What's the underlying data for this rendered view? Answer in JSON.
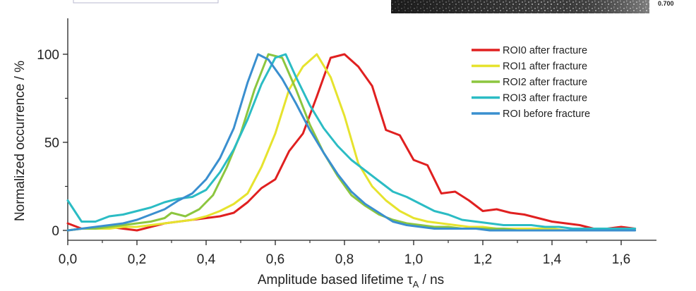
{
  "inset": {
    "corner_value": "0.700"
  },
  "chart_data": {
    "type": "line",
    "title": "",
    "xlabel": "Amplitude based lifetime τ",
    "xlabel_sub": "A",
    "xlabel_unit": " / ns",
    "ylabel": "Normalized occurrence / %",
    "xlim": [
      0.0,
      1.7
    ],
    "ylim": [
      -5,
      122
    ],
    "x_ticks": [
      0.0,
      0.2,
      0.4,
      0.6,
      0.8,
      1.0,
      1.2,
      1.4,
      1.6
    ],
    "x_tick_labels": [
      "0,0",
      "0,2",
      "0,4",
      "0,6",
      "0,8",
      "1,0",
      "1,2",
      "1,4",
      "1,6"
    ],
    "y_ticks": [
      0,
      50,
      100
    ],
    "y_tick_labels": [
      "0",
      "50",
      "100"
    ],
    "grid": false,
    "legend_position": "top-right",
    "series": [
      {
        "name": "ROI0 after fracture",
        "color": "#e02020",
        "points": [
          [
            0.0,
            4
          ],
          [
            0.04,
            1
          ],
          [
            0.08,
            1
          ],
          [
            0.12,
            2
          ],
          [
            0.16,
            1
          ],
          [
            0.2,
            0
          ],
          [
            0.24,
            2
          ],
          [
            0.28,
            4
          ],
          [
            0.32,
            5
          ],
          [
            0.36,
            6
          ],
          [
            0.4,
            7
          ],
          [
            0.44,
            8
          ],
          [
            0.48,
            10
          ],
          [
            0.52,
            16
          ],
          [
            0.56,
            24
          ],
          [
            0.6,
            29
          ],
          [
            0.64,
            45
          ],
          [
            0.68,
            55
          ],
          [
            0.72,
            76
          ],
          [
            0.76,
            98
          ],
          [
            0.8,
            100
          ],
          [
            0.84,
            93
          ],
          [
            0.88,
            82
          ],
          [
            0.92,
            57
          ],
          [
            0.96,
            54
          ],
          [
            1.0,
            40
          ],
          [
            1.04,
            37
          ],
          [
            1.08,
            21
          ],
          [
            1.12,
            22
          ],
          [
            1.16,
            17
          ],
          [
            1.2,
            11
          ],
          [
            1.24,
            12
          ],
          [
            1.28,
            10
          ],
          [
            1.32,
            9
          ],
          [
            1.36,
            7
          ],
          [
            1.4,
            5
          ],
          [
            1.44,
            4
          ],
          [
            1.48,
            3
          ],
          [
            1.52,
            1
          ],
          [
            1.56,
            1
          ],
          [
            1.6,
            2
          ],
          [
            1.64,
            1
          ]
        ]
      },
      {
        "name": "ROI1 after fracture",
        "color": "#e6e32e",
        "points": [
          [
            0.0,
            0
          ],
          [
            0.04,
            1
          ],
          [
            0.08,
            1
          ],
          [
            0.12,
            1
          ],
          [
            0.16,
            2
          ],
          [
            0.2,
            2
          ],
          [
            0.24,
            3
          ],
          [
            0.28,
            4
          ],
          [
            0.32,
            5
          ],
          [
            0.36,
            6
          ],
          [
            0.4,
            8
          ],
          [
            0.44,
            11
          ],
          [
            0.48,
            15
          ],
          [
            0.52,
            21
          ],
          [
            0.56,
            36
          ],
          [
            0.6,
            55
          ],
          [
            0.64,
            80
          ],
          [
            0.68,
            93
          ],
          [
            0.72,
            100
          ],
          [
            0.76,
            87
          ],
          [
            0.8,
            65
          ],
          [
            0.84,
            38
          ],
          [
            0.88,
            25
          ],
          [
            0.92,
            17
          ],
          [
            0.96,
            11
          ],
          [
            1.0,
            7
          ],
          [
            1.04,
            5
          ],
          [
            1.08,
            4
          ],
          [
            1.12,
            3
          ],
          [
            1.16,
            2
          ],
          [
            1.2,
            2
          ],
          [
            1.24,
            1
          ],
          [
            1.28,
            1
          ],
          [
            1.32,
            1
          ],
          [
            1.36,
            1
          ],
          [
            1.4,
            1
          ],
          [
            1.44,
            0
          ],
          [
            1.48,
            0
          ],
          [
            1.52,
            0
          ],
          [
            1.56,
            0
          ],
          [
            1.6,
            0
          ],
          [
            1.64,
            0
          ]
        ]
      },
      {
        "name": "ROI2 after fracture",
        "color": "#8cc63f",
        "points": [
          [
            0.0,
            0
          ],
          [
            0.04,
            1
          ],
          [
            0.08,
            1
          ],
          [
            0.12,
            2
          ],
          [
            0.16,
            3
          ],
          [
            0.2,
            4
          ],
          [
            0.24,
            5
          ],
          [
            0.28,
            7
          ],
          [
            0.3,
            10
          ],
          [
            0.34,
            8
          ],
          [
            0.38,
            12
          ],
          [
            0.42,
            20
          ],
          [
            0.46,
            36
          ],
          [
            0.5,
            55
          ],
          [
            0.54,
            80
          ],
          [
            0.58,
            100
          ],
          [
            0.62,
            98
          ],
          [
            0.66,
            80
          ],
          [
            0.7,
            60
          ],
          [
            0.74,
            44
          ],
          [
            0.78,
            31
          ],
          [
            0.82,
            20
          ],
          [
            0.86,
            14
          ],
          [
            0.9,
            9
          ],
          [
            0.94,
            6
          ],
          [
            0.98,
            4
          ],
          [
            1.02,
            3
          ],
          [
            1.06,
            2
          ],
          [
            1.1,
            2
          ],
          [
            1.14,
            1
          ],
          [
            1.18,
            1
          ],
          [
            1.22,
            1
          ],
          [
            1.26,
            1
          ],
          [
            1.3,
            0
          ],
          [
            1.4,
            0
          ],
          [
            1.5,
            0
          ],
          [
            1.6,
            0
          ],
          [
            1.64,
            1
          ]
        ]
      },
      {
        "name": "ROI3 after fracture",
        "color": "#2bbcc4",
        "points": [
          [
            0.0,
            17
          ],
          [
            0.04,
            5
          ],
          [
            0.08,
            5
          ],
          [
            0.12,
            8
          ],
          [
            0.16,
            9
          ],
          [
            0.2,
            11
          ],
          [
            0.24,
            13
          ],
          [
            0.28,
            16
          ],
          [
            0.32,
            18
          ],
          [
            0.36,
            19
          ],
          [
            0.4,
            23
          ],
          [
            0.44,
            33
          ],
          [
            0.48,
            46
          ],
          [
            0.52,
            63
          ],
          [
            0.56,
            83
          ],
          [
            0.6,
            98
          ],
          [
            0.63,
            100
          ],
          [
            0.66,
            87
          ],
          [
            0.7,
            71
          ],
          [
            0.74,
            58
          ],
          [
            0.78,
            48
          ],
          [
            0.82,
            40
          ],
          [
            0.86,
            34
          ],
          [
            0.9,
            28
          ],
          [
            0.94,
            22
          ],
          [
            0.98,
            19
          ],
          [
            1.02,
            15
          ],
          [
            1.06,
            11
          ],
          [
            1.1,
            9
          ],
          [
            1.14,
            6
          ],
          [
            1.18,
            5
          ],
          [
            1.22,
            4
          ],
          [
            1.26,
            3
          ],
          [
            1.3,
            3
          ],
          [
            1.34,
            3
          ],
          [
            1.38,
            2
          ],
          [
            1.42,
            2
          ],
          [
            1.46,
            1
          ],
          [
            1.5,
            1
          ],
          [
            1.54,
            1
          ],
          [
            1.58,
            1
          ],
          [
            1.62,
            1
          ],
          [
            1.64,
            1
          ]
        ]
      },
      {
        "name": "ROI before fracture",
        "color": "#3a8fcf",
        "points": [
          [
            0.0,
            0
          ],
          [
            0.04,
            1
          ],
          [
            0.08,
            2
          ],
          [
            0.12,
            3
          ],
          [
            0.16,
            4
          ],
          [
            0.2,
            6
          ],
          [
            0.24,
            9
          ],
          [
            0.28,
            12
          ],
          [
            0.32,
            17
          ],
          [
            0.36,
            21
          ],
          [
            0.4,
            29
          ],
          [
            0.44,
            41
          ],
          [
            0.48,
            58
          ],
          [
            0.52,
            84
          ],
          [
            0.55,
            100
          ],
          [
            0.58,
            97
          ],
          [
            0.62,
            86
          ],
          [
            0.66,
            72
          ],
          [
            0.7,
            57
          ],
          [
            0.74,
            44
          ],
          [
            0.78,
            32
          ],
          [
            0.82,
            22
          ],
          [
            0.86,
            15
          ],
          [
            0.9,
            10
          ],
          [
            0.94,
            5
          ],
          [
            0.98,
            3
          ],
          [
            1.02,
            2
          ],
          [
            1.06,
            1
          ],
          [
            1.1,
            1
          ],
          [
            1.14,
            1
          ],
          [
            1.18,
            1
          ],
          [
            1.22,
            0
          ],
          [
            1.3,
            0
          ],
          [
            1.4,
            0
          ],
          [
            1.5,
            0
          ],
          [
            1.6,
            0
          ],
          [
            1.64,
            0
          ]
        ]
      }
    ]
  }
}
